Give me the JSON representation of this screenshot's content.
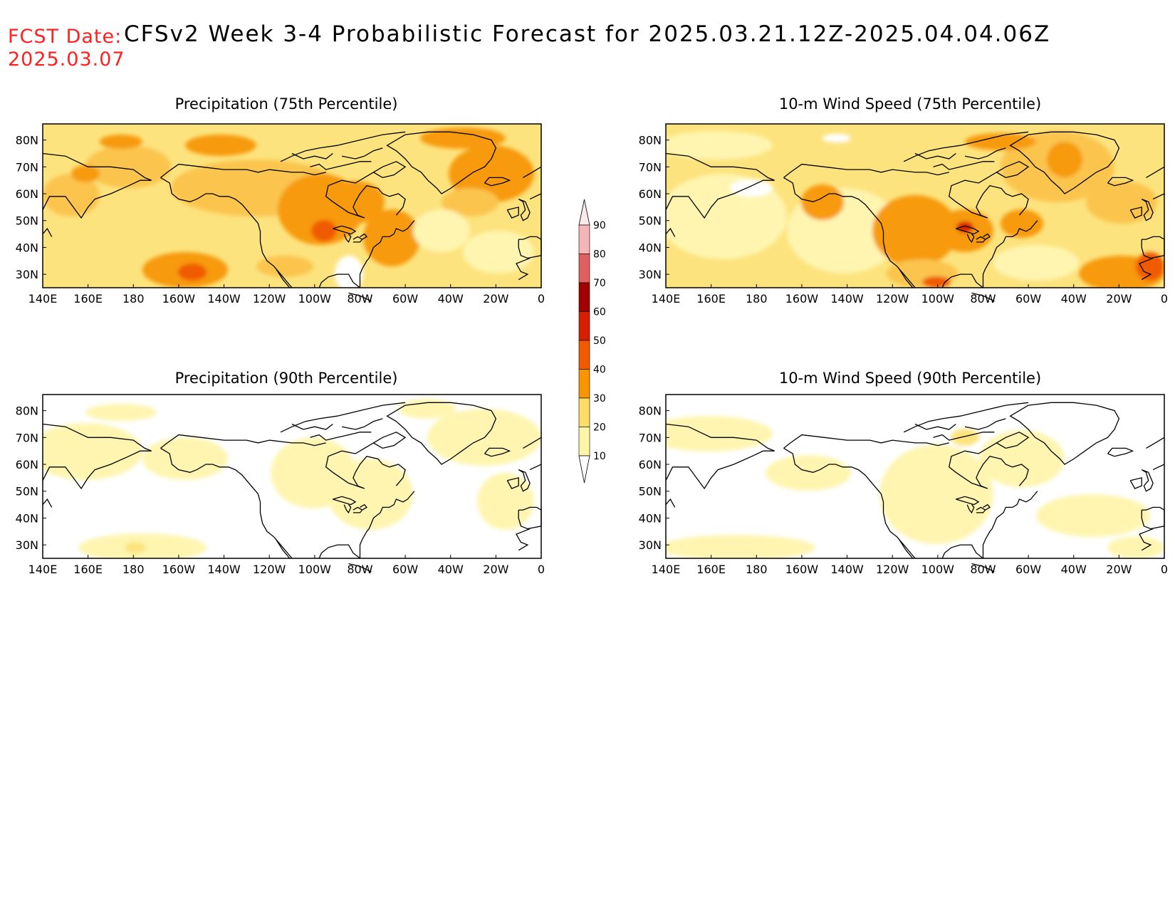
{
  "header": {
    "fcst_label": "FCST Date:",
    "fcst_date": "2025.03.07",
    "title": "CFSv2 Week 3-4 Probabilistic Forecast for 2025.03.21.12Z-2025.04.04.06Z"
  },
  "lat_ticks": [
    "80N",
    "70N",
    "60N",
    "50N",
    "40N",
    "30N"
  ],
  "lon_ticks": [
    "140E",
    "160E",
    "180",
    "160W",
    "140W",
    "120W",
    "100W",
    "80W",
    "60W",
    "40W",
    "20W",
    "0"
  ],
  "panels": [
    {
      "id": "precip-75",
      "title": "Precipitation (75th Percentile)",
      "level": 0.3
    },
    {
      "id": "wind-75",
      "title": "10-m Wind Speed (75th Percentile)",
      "level": 0.32
    },
    {
      "id": "precip-90",
      "title": "Precipitation (90th Percentile)",
      "level": 0.12
    },
    {
      "id": "wind-90",
      "title": "10-m Wind Speed (90th Percentile)",
      "level": 0.1
    }
  ],
  "colorbar": {
    "labels": [
      "90",
      "80",
      "70",
      "60",
      "50",
      "40",
      "30",
      "20",
      "10"
    ],
    "colors": [
      "#f5b4b8",
      "#e06060",
      "#a00000",
      "#d81e00",
      "#f15a00",
      "#f79600",
      "#fbdd68",
      "#fff5a8"
    ]
  },
  "shade_colors": {
    "c10": "#fff5b0",
    "c20": "#fde37e",
    "c30": "#fbc54d",
    "c40": "#f79a10",
    "c50": "#f05a00",
    "c60": "#d81e00"
  }
}
